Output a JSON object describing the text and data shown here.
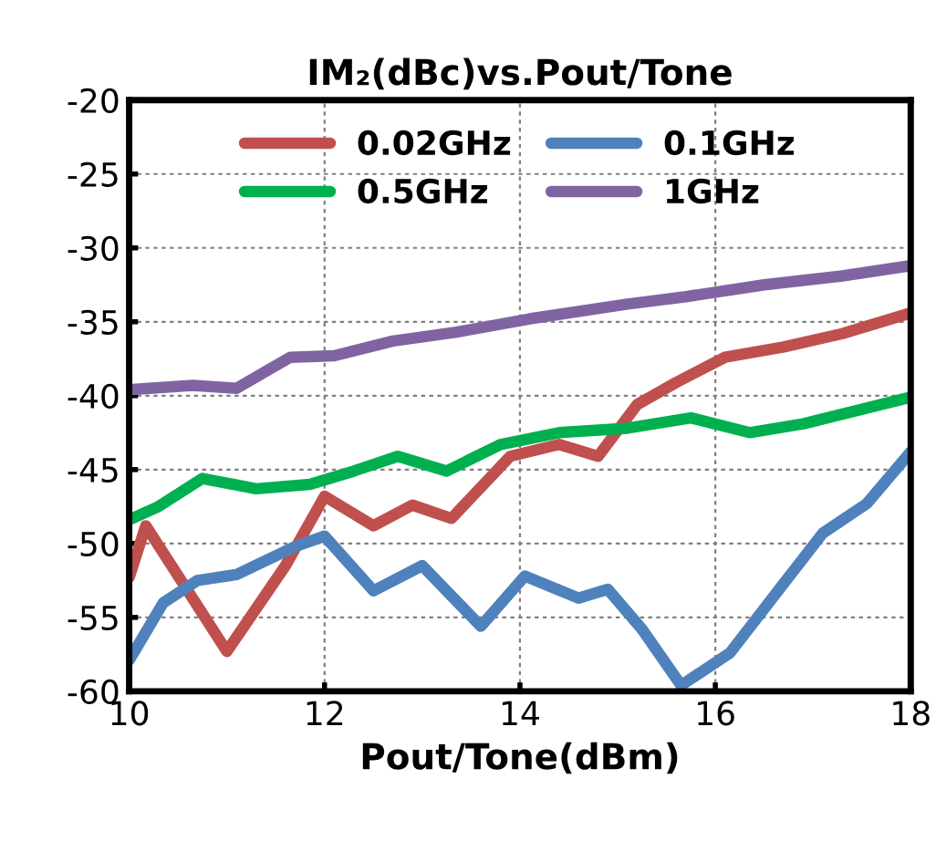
{
  "chart_data": {
    "type": "line",
    "title": "IM₂(dBc)vs.Pout/Tone",
    "xlabel": "Pout/Tone(dBm)",
    "xlim": [
      10,
      18
    ],
    "xticks": [
      10,
      12,
      14,
      16,
      18
    ],
    "ylim": [
      -60,
      -20
    ],
    "yticks": [
      -60,
      -55,
      -50,
      -45,
      -40,
      -35,
      -30,
      -25,
      -20
    ],
    "grid": true,
    "legend": "top",
    "marker": "none",
    "line_style": "solid",
    "series": [
      {
        "name": "0.02GHz",
        "color": "#c0504d",
        "x": [
          10,
          10.17,
          11.0,
          11.6,
          12.0,
          12.5,
          12.9,
          13.3,
          13.9,
          14.4,
          14.8,
          15.2,
          15.6,
          16.1,
          16.7,
          17.3,
          18
        ],
        "values": [
          -52.3,
          -48.8,
          -57.3,
          -51.5,
          -46.8,
          -48.8,
          -47.4,
          -48.3,
          -44.1,
          -43.3,
          -44.1,
          -40.6,
          -39.1,
          -37.4,
          -36.7,
          -35.8,
          -34.4
        ]
      },
      {
        "name": "0.1GHz",
        "color": "#4f81bd",
        "x": [
          10,
          10.35,
          10.7,
          11.1,
          11.7,
          12.0,
          12.5,
          13.0,
          13.6,
          14.05,
          14.6,
          14.9,
          15.25,
          15.65,
          16.15,
          16.7,
          17.1,
          17.55,
          18
        ],
        "values": [
          -57.9,
          -54,
          -52.5,
          -52.1,
          -50.2,
          -49.5,
          -53.2,
          -51.5,
          -55.6,
          -52.2,
          -53.7,
          -53.1,
          -55.8,
          -59.6,
          -57.4,
          -52.7,
          -49.3,
          -47.3,
          -43.8
        ]
      },
      {
        "name": "0.5GHz",
        "color": "#00b050",
        "x": [
          10,
          10.3,
          10.75,
          11.3,
          11.85,
          12.3,
          12.75,
          13.25,
          13.8,
          14.4,
          15.1,
          15.75,
          16.35,
          16.9,
          18
        ],
        "values": [
          -48.4,
          -47.5,
          -45.6,
          -46.3,
          -46.0,
          -45.1,
          -44.1,
          -45.1,
          -43.3,
          -42.5,
          -42.2,
          -41.5,
          -42.5,
          -41.9,
          -40.1
        ]
      },
      {
        "name": "1GHz",
        "color": "#8064a2",
        "x": [
          10,
          10.65,
          11.1,
          11.65,
          12.1,
          12.7,
          13.35,
          14.1,
          15.1,
          15.7,
          16.5,
          17.3,
          18
        ],
        "values": [
          -39.6,
          -39.3,
          -39.5,
          -37.4,
          -37.3,
          -36.3,
          -35.7,
          -34.8,
          -33.8,
          -33.3,
          -32.5,
          -31.9,
          -31.2
        ]
      }
    ]
  }
}
